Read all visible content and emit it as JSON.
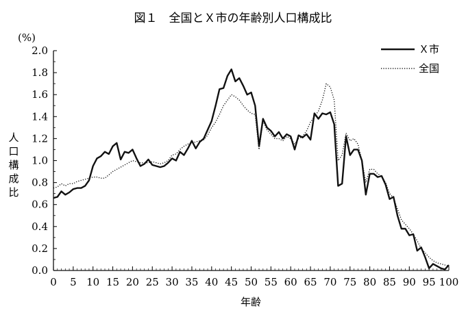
{
  "chart_data": {
    "type": "line",
    "title": "図１　全国とＸ市の年齢別人口構成比",
    "unit_label": "(%)",
    "xlabel": "年齢",
    "ylabel": "人口構成比",
    "xlim": [
      0,
      100
    ],
    "ylim": [
      0,
      2.0
    ],
    "x_ticks": [
      "0",
      "5",
      "10",
      "15",
      "20",
      "25",
      "30",
      "35",
      "40",
      "45",
      "50",
      "55",
      "60",
      "65",
      "70",
      "75",
      "80",
      "85",
      "90",
      "95",
      "100"
    ],
    "y_ticks": [
      "0.0",
      "0.2",
      "0.4",
      "0.6",
      "0.8",
      "1.0",
      "1.2",
      "1.4",
      "1.6",
      "1.8",
      "2.0"
    ],
    "grid": false,
    "legend_position": "top-right",
    "series": [
      {
        "name": "Ｘ市",
        "style": "solid",
        "x": [
          0,
          1,
          2,
          3,
          4,
          5,
          6,
          7,
          8,
          9,
          10,
          11,
          12,
          13,
          14,
          15,
          16,
          17,
          18,
          19,
          20,
          21,
          22,
          23,
          24,
          25,
          26,
          27,
          28,
          29,
          30,
          31,
          32,
          33,
          34,
          35,
          36,
          37,
          38,
          39,
          40,
          41,
          42,
          43,
          44,
          45,
          46,
          47,
          48,
          49,
          50,
          51,
          52,
          53,
          54,
          55,
          56,
          57,
          58,
          59,
          60,
          61,
          62,
          63,
          64,
          65,
          66,
          67,
          68,
          69,
          70,
          71,
          72,
          73,
          74,
          75,
          76,
          77,
          78,
          79,
          80,
          81,
          82,
          83,
          84,
          85,
          86,
          87,
          88,
          89,
          90,
          91,
          92,
          93,
          94,
          95,
          96,
          97,
          98,
          99,
          100
        ],
        "values": [
          0.66,
          0.67,
          0.72,
          0.69,
          0.71,
          0.74,
          0.75,
          0.75,
          0.77,
          0.82,
          0.95,
          1.02,
          1.04,
          1.08,
          1.06,
          1.13,
          1.16,
          1.01,
          1.08,
          1.07,
          1.1,
          1.02,
          0.95,
          0.97,
          1.01,
          0.96,
          0.95,
          0.94,
          0.95,
          0.98,
          1.02,
          1.0,
          1.08,
          1.05,
          1.11,
          1.18,
          1.11,
          1.17,
          1.2,
          1.28,
          1.36,
          1.5,
          1.65,
          1.66,
          1.77,
          1.83,
          1.72,
          1.75,
          1.68,
          1.6,
          1.62,
          1.5,
          1.13,
          1.38,
          1.3,
          1.27,
          1.22,
          1.26,
          1.2,
          1.24,
          1.22,
          1.1,
          1.23,
          1.21,
          1.24,
          1.19,
          1.43,
          1.38,
          1.43,
          1.42,
          1.44,
          1.33,
          0.77,
          0.79,
          1.22,
          1.05,
          1.1,
          1.1,
          1.0,
          0.69,
          0.88,
          0.88,
          0.85,
          0.86,
          0.78,
          0.65,
          0.67,
          0.5,
          0.38,
          0.38,
          0.32,
          0.33,
          0.18,
          0.21,
          0.12,
          0.02,
          0.06,
          0.04,
          0.02,
          0.01,
          0.05
        ]
      },
      {
        "name": "全国",
        "style": "dotted",
        "x": [
          0,
          1,
          2,
          3,
          4,
          5,
          6,
          7,
          8,
          9,
          10,
          11,
          12,
          13,
          14,
          15,
          16,
          17,
          18,
          19,
          20,
          21,
          22,
          23,
          24,
          25,
          26,
          27,
          28,
          29,
          30,
          31,
          32,
          33,
          34,
          35,
          36,
          37,
          38,
          39,
          40,
          41,
          42,
          43,
          44,
          45,
          46,
          47,
          48,
          49,
          50,
          51,
          52,
          53,
          54,
          55,
          56,
          57,
          58,
          59,
          60,
          61,
          62,
          63,
          64,
          65,
          66,
          67,
          68,
          69,
          70,
          71,
          72,
          73,
          74,
          75,
          76,
          77,
          78,
          79,
          80,
          81,
          82,
          83,
          84,
          85,
          86,
          87,
          88,
          89,
          90,
          91,
          92,
          93,
          94,
          95,
          96,
          97,
          98,
          99,
          100
        ],
        "values": [
          0.75,
          0.76,
          0.79,
          0.77,
          0.79,
          0.79,
          0.81,
          0.82,
          0.83,
          0.84,
          0.85,
          0.85,
          0.84,
          0.84,
          0.87,
          0.9,
          0.92,
          0.94,
          0.96,
          0.98,
          1.0,
          0.99,
          0.98,
          0.98,
          0.98,
          0.99,
          0.98,
          0.97,
          0.98,
          1.0,
          1.05,
          1.06,
          1.1,
          1.13,
          1.15,
          1.16,
          1.17,
          1.18,
          1.19,
          1.23,
          1.3,
          1.35,
          1.42,
          1.5,
          1.55,
          1.6,
          1.58,
          1.55,
          1.5,
          1.46,
          1.43,
          1.42,
          1.1,
          1.36,
          1.28,
          1.24,
          1.2,
          1.2,
          1.18,
          1.22,
          1.2,
          1.15,
          1.2,
          1.22,
          1.27,
          1.35,
          1.4,
          1.45,
          1.55,
          1.7,
          1.67,
          1.55,
          1.0,
          1.05,
          1.25,
          1.18,
          1.2,
          1.15,
          1.0,
          0.8,
          0.92,
          0.92,
          0.88,
          0.86,
          0.8,
          0.7,
          0.66,
          0.56,
          0.46,
          0.42,
          0.38,
          0.33,
          0.27,
          0.2,
          0.16,
          0.12,
          0.09,
          0.07,
          0.06,
          0.05,
          0.04
        ]
      }
    ]
  }
}
